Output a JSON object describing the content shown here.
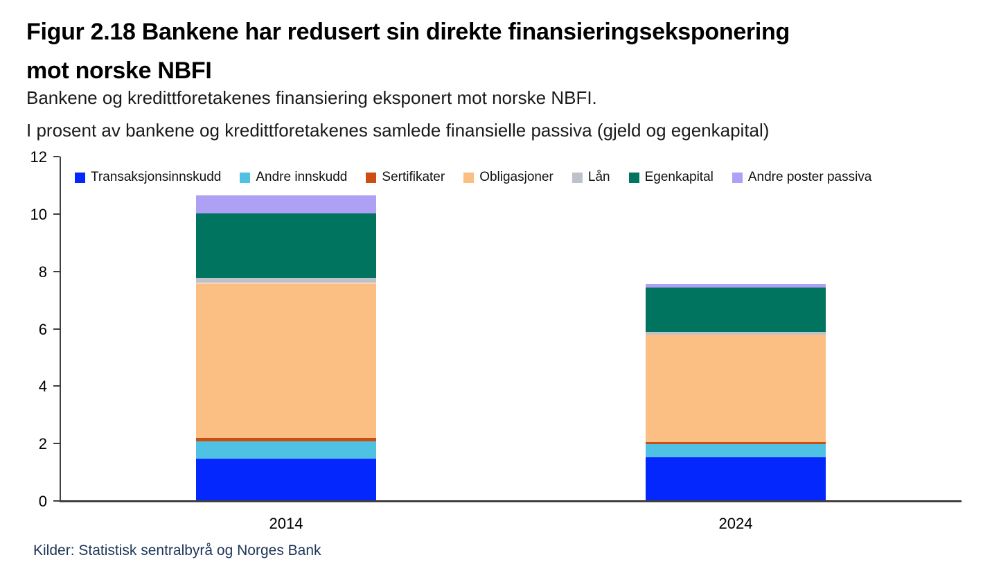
{
  "title": {
    "line1": "Figur 2.18 Bankene har redusert sin direkte finansieringseksponering",
    "line2": "mot norske NBFI"
  },
  "subtitle1": "Bankene og kredittforetakenes finansiering eksponert mot norske NBFI.",
  "subtitle2": "I prosent av bankene og kredittforetakenes samlede finansielle passiva (gjeld og egenkapital)",
  "source": "Kilder: Statistisk sentralbyrå og Norges Bank",
  "colors": {
    "axis": "#3f3f3f",
    "source_text": "#1c3557",
    "title_text": "#000000"
  },
  "chart_data": {
    "type": "bar",
    "stacked": true,
    "title": "Figur 2.18 Bankene har redusert sin direkte finansieringseksponering mot norske NBFI",
    "xlabel": "",
    "ylabel": "",
    "categories": [
      "2014",
      "2024"
    ],
    "series": [
      {
        "name": "Transaksjonsinnskudd",
        "color": "#0427fd",
        "values": [
          1.45,
          1.5
        ]
      },
      {
        "name": "Andre innskudd",
        "color": "#4fc2e3",
        "values": [
          0.6,
          0.45
        ]
      },
      {
        "name": "Sertifikater",
        "color": "#cc4e12",
        "values": [
          0.12,
          0.08
        ]
      },
      {
        "name": "Obligasjoner",
        "color": "#fbbe83",
        "values": [
          5.4,
          3.73
        ]
      },
      {
        "name": "Lån",
        "color": "#bdc1c9",
        "values": [
          0.18,
          0.1
        ]
      },
      {
        "name": "Egenkapital",
        "color": "#00745f",
        "values": [
          2.25,
          1.55
        ]
      },
      {
        "name": "Andre poster passiva",
        "color": "#aea0f4",
        "values": [
          0.62,
          0.12
        ]
      }
    ],
    "totals": [
      10.62,
      7.53
    ],
    "ylim": [
      0,
      12
    ],
    "yticks": [
      0,
      2,
      4,
      6,
      8,
      10,
      12
    ],
    "grid": false,
    "legend_position": "top"
  }
}
